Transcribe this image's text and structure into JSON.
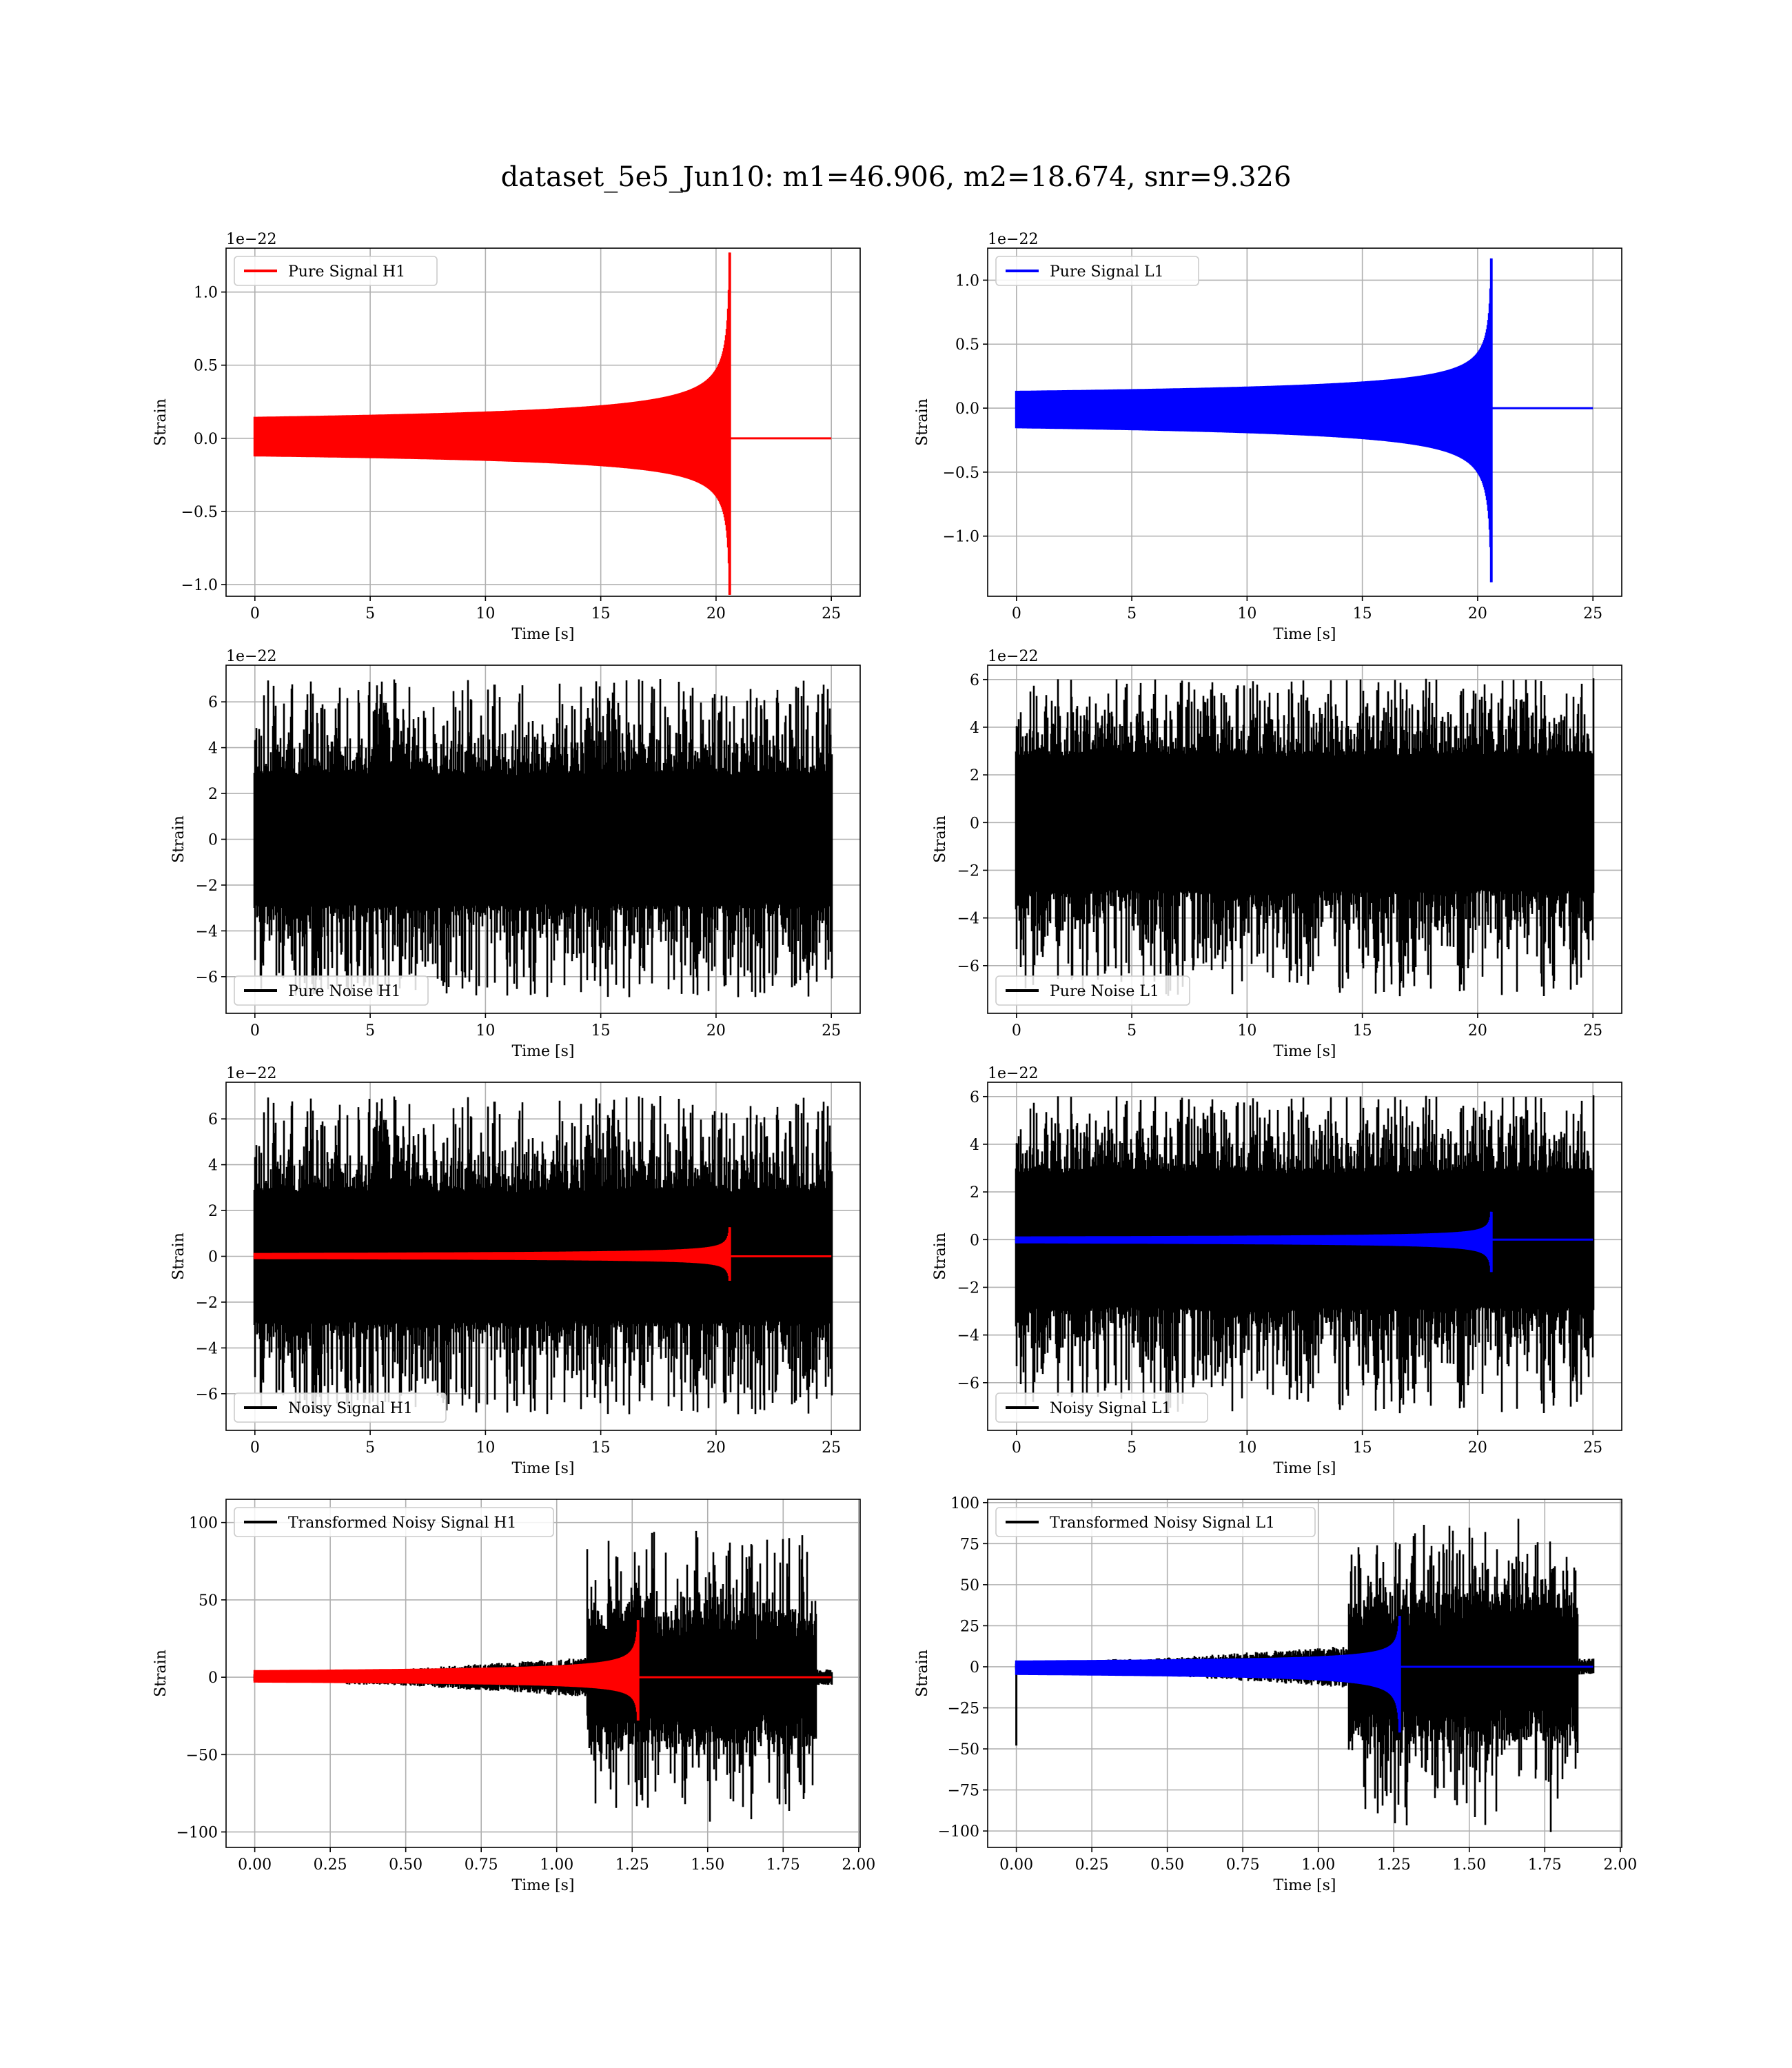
{
  "title": "dataset_5e5_Jun10: m1=46.906, m2=18.674, snr=9.326",
  "colors": {
    "h1_signal": "#ff0000",
    "l1_signal": "#0000ff",
    "noise": "#000000",
    "grid": "#b0b0b0"
  },
  "chart_data": [
    {
      "type": "line",
      "xlabel": "Time [s]",
      "ylabel": "Strain",
      "offset_text": "1e−22",
      "xlim": [
        -1.25,
        26.25
      ],
      "ylim": [
        -1.08,
        1.3
      ],
      "xticks": [
        0,
        5,
        10,
        15,
        20,
        25
      ],
      "xtick_labels": [
        "0",
        "5",
        "10",
        "15",
        "20",
        "25"
      ],
      "yticks": [
        -1.0,
        -0.5,
        0.0,
        0.5,
        1.0
      ],
      "ytick_labels": [
        "−1.0",
        "−0.5",
        "0.0",
        "0.5",
        "1.0"
      ],
      "grid": true,
      "legend_position": "upper-left",
      "series": [
        {
          "name": "Pure Signal H1",
          "color": "#ff0000",
          "kind": "chirp",
          "t_start": 0,
          "t_end": 25,
          "merger_time": 20.6,
          "peak_amplitude": 1.27,
          "trough_amplitude": -1.07
        }
      ]
    },
    {
      "type": "line",
      "xlabel": "Time [s]",
      "ylabel": "Strain",
      "offset_text": "1e−22",
      "xlim": [
        -1.25,
        26.25
      ],
      "ylim": [
        -1.47,
        1.25
      ],
      "xticks": [
        0,
        5,
        10,
        15,
        20,
        25
      ],
      "xtick_labels": [
        "0",
        "5",
        "10",
        "15",
        "20",
        "25"
      ],
      "yticks": [
        -1.0,
        -0.5,
        0.0,
        0.5,
        1.0
      ],
      "ytick_labels": [
        "−1.0",
        "−0.5",
        "0.0",
        "0.5",
        "1.0"
      ],
      "grid": true,
      "legend_position": "upper-left",
      "series": [
        {
          "name": "Pure Signal L1",
          "color": "#0000ff",
          "kind": "chirp",
          "t_start": 0,
          "t_end": 25,
          "merger_time": 20.6,
          "peak_amplitude": 1.17,
          "trough_amplitude": -1.36
        }
      ]
    },
    {
      "type": "line",
      "xlabel": "Time [s]",
      "ylabel": "Strain",
      "offset_text": "1e−22",
      "xlim": [
        -1.25,
        26.25
      ],
      "ylim": [
        -7.6,
        7.6
      ],
      "xticks": [
        0,
        5,
        10,
        15,
        20,
        25
      ],
      "xtick_labels": [
        "0",
        "5",
        "10",
        "15",
        "20",
        "25"
      ],
      "yticks": [
        -6,
        -4,
        -2,
        0,
        2,
        4,
        6
      ],
      "ytick_labels": [
        "−6",
        "−4",
        "−2",
        "0",
        "2",
        "4",
        "6"
      ],
      "grid": true,
      "legend_position": "lower-left",
      "series": [
        {
          "name": "Pure Noise H1",
          "color": "#000000",
          "kind": "noise",
          "t_start": 0,
          "t_end": 25,
          "band": 3.0,
          "max": 7.0,
          "min": -6.9,
          "seed": 11
        }
      ]
    },
    {
      "type": "line",
      "xlabel": "Time [s]",
      "ylabel": "Strain",
      "offset_text": "1e−22",
      "xlim": [
        -1.25,
        26.25
      ],
      "ylim": [
        -8.0,
        6.6
      ],
      "xticks": [
        0,
        5,
        10,
        15,
        20,
        25
      ],
      "xtick_labels": [
        "0",
        "5",
        "10",
        "15",
        "20",
        "25"
      ],
      "yticks": [
        -6,
        -4,
        -2,
        0,
        2,
        4,
        6
      ],
      "ytick_labels": [
        "−6",
        "−4",
        "−2",
        "0",
        "2",
        "4",
        "6"
      ],
      "grid": true,
      "legend_position": "lower-left",
      "series": [
        {
          "name": "Pure Noise L1",
          "color": "#000000",
          "kind": "noise",
          "t_start": 0,
          "t_end": 25,
          "band": 3.0,
          "max": 6.1,
          "min": -7.3,
          "seed": 23
        }
      ]
    },
    {
      "type": "line",
      "xlabel": "Time [s]",
      "ylabel": "Strain",
      "offset_text": "1e−22",
      "xlim": [
        -1.25,
        26.25
      ],
      "ylim": [
        -7.6,
        7.6
      ],
      "xticks": [
        0,
        5,
        10,
        15,
        20,
        25
      ],
      "xtick_labels": [
        "0",
        "5",
        "10",
        "15",
        "20",
        "25"
      ],
      "yticks": [
        -6,
        -4,
        -2,
        0,
        2,
        4,
        6
      ],
      "ytick_labels": [
        "−6",
        "−4",
        "−2",
        "0",
        "2",
        "4",
        "6"
      ],
      "grid": true,
      "legend_position": "lower-left",
      "series": [
        {
          "name": "Noisy Signal H1",
          "color": "#000000",
          "kind": "noise",
          "t_start": 0,
          "t_end": 25,
          "band": 3.0,
          "max": 7.0,
          "min": -6.9,
          "seed": 11
        },
        {
          "color": "#ff0000",
          "kind": "chirp",
          "t_start": 0,
          "t_end": 25,
          "merger_time": 20.6,
          "peak_amplitude": 1.27,
          "trough_amplitude": -1.07
        }
      ]
    },
    {
      "type": "line",
      "xlabel": "Time [s]",
      "ylabel": "Strain",
      "offset_text": "1e−22",
      "xlim": [
        -1.25,
        26.25
      ],
      "ylim": [
        -8.0,
        6.6
      ],
      "xticks": [
        0,
        5,
        10,
        15,
        20,
        25
      ],
      "xtick_labels": [
        "0",
        "5",
        "10",
        "15",
        "20",
        "25"
      ],
      "yticks": [
        -6,
        -4,
        -2,
        0,
        2,
        4,
        6
      ],
      "ytick_labels": [
        "−6",
        "−4",
        "−2",
        "0",
        "2",
        "4",
        "6"
      ],
      "grid": true,
      "legend_position": "lower-left",
      "series": [
        {
          "name": "Noisy Signal L1",
          "color": "#000000",
          "kind": "noise",
          "t_start": 0,
          "t_end": 25,
          "band": 3.0,
          "max": 6.1,
          "min": -7.3,
          "seed": 23
        },
        {
          "color": "#0000ff",
          "kind": "chirp",
          "t_start": 0,
          "t_end": 25,
          "merger_time": 20.6,
          "peak_amplitude": 1.17,
          "trough_amplitude": -1.36
        }
      ]
    },
    {
      "type": "line",
      "xlabel": "Time [s]",
      "ylabel": "Strain",
      "offset_text": "",
      "xlim": [
        -0.095,
        2.005
      ],
      "ylim": [
        -110,
        115
      ],
      "xticks": [
        0.0,
        0.25,
        0.5,
        0.75,
        1.0,
        1.25,
        1.5,
        1.75,
        2.0
      ],
      "xtick_labels": [
        "0.00",
        "0.25",
        "0.50",
        "0.75",
        "1.00",
        "1.25",
        "1.50",
        "1.75",
        "2.00"
      ],
      "yticks": [
        -100,
        -50,
        0,
        50,
        100
      ],
      "ytick_labels": [
        "−100",
        "−50",
        "0",
        "50",
        "100"
      ],
      "grid": true,
      "legend_position": "upper-left",
      "series": [
        {
          "name": "Transformed Noisy Signal H1",
          "color": "#000000",
          "kind": "whitened",
          "t_start": 0,
          "t_end": 1.91,
          "burst_start": 1.1,
          "burst_end": 1.86,
          "max": 107,
          "min": -102,
          "seed": 37
        },
        {
          "color": "#ff0000",
          "kind": "chirp",
          "t_start": 0,
          "t_end": 1.91,
          "merger_time": 1.27,
          "peak_amplitude": 37,
          "trough_amplitude": -28
        }
      ]
    },
    {
      "type": "line",
      "xlabel": "Time [s]",
      "ylabel": "Strain",
      "offset_text": "",
      "xlim": [
        -0.095,
        2.005
      ],
      "ylim": [
        -110,
        102
      ],
      "xticks": [
        0.0,
        0.25,
        0.5,
        0.75,
        1.0,
        1.25,
        1.5,
        1.75,
        2.0
      ],
      "xtick_labels": [
        "0.00",
        "0.25",
        "0.50",
        "0.75",
        "1.00",
        "1.25",
        "1.50",
        "1.75",
        "2.00"
      ],
      "yticks": [
        -100,
        -75,
        -50,
        -25,
        0,
        25,
        50,
        75,
        100
      ],
      "ytick_labels": [
        "−100",
        "−75",
        "−50",
        "−25",
        "0",
        "25",
        "50",
        "75",
        "100"
      ],
      "grid": true,
      "legend_position": "upper-left",
      "series": [
        {
          "name": "Transformed Noisy Signal L1",
          "color": "#000000",
          "kind": "whitened",
          "t_start": 0,
          "t_end": 1.91,
          "burst_start": 1.1,
          "burst_end": 1.86,
          "max": 94,
          "min": -104,
          "seed": 53,
          "start_spike": -48
        },
        {
          "color": "#0000ff",
          "kind": "chirp",
          "t_start": 0,
          "t_end": 1.91,
          "merger_time": 1.27,
          "peak_amplitude": 31,
          "trough_amplitude": -40
        }
      ]
    }
  ]
}
